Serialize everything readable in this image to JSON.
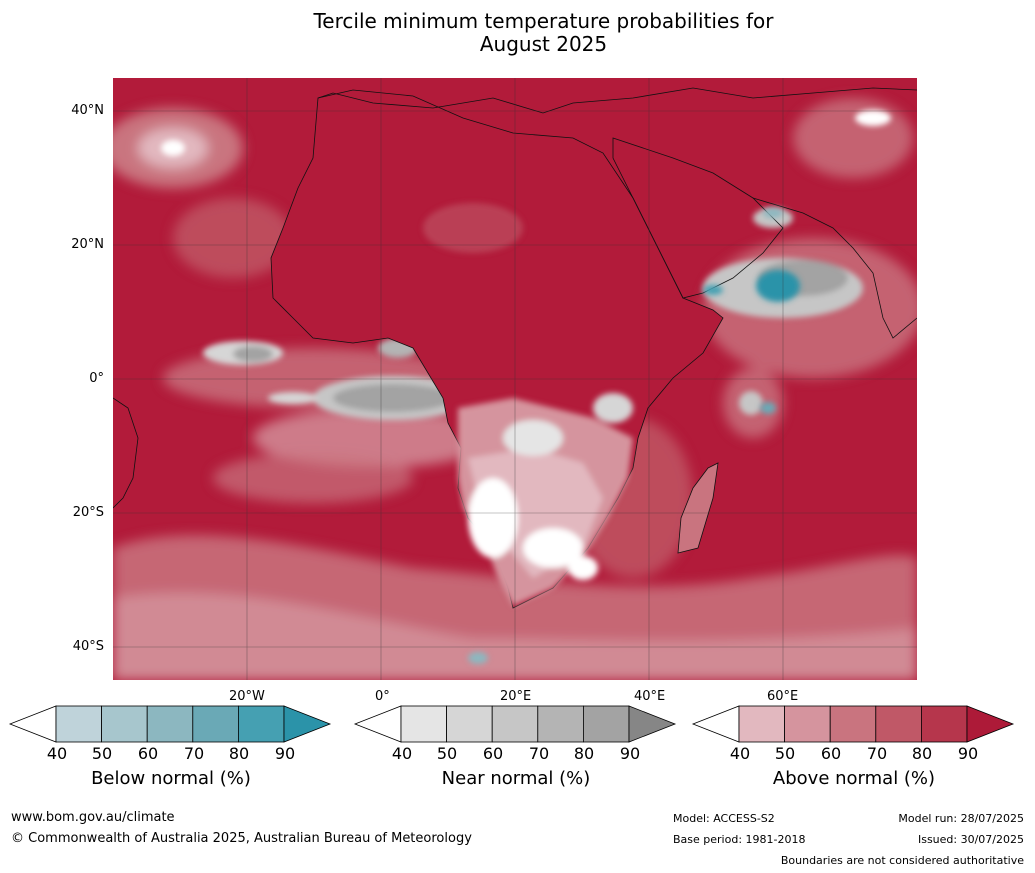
{
  "title_line1": "Tercile minimum temperature probabilities for",
  "title_line2": "August 2025",
  "lat_labels": [
    "40°N",
    "20°N",
    "0°",
    "20°S",
    "40°S"
  ],
  "lon_labels": [
    "20°W",
    "0°",
    "20°E",
    "40°E",
    "60°E"
  ],
  "colorbars": [
    {
      "label": "Below normal (%)",
      "ticks": [
        "40",
        "50",
        "60",
        "70",
        "80",
        "90"
      ],
      "colors": [
        "#ffffff",
        "#bfd3da",
        "#a7c6cd",
        "#8cb7c0",
        "#6aa9b6",
        "#45a0b2",
        "#2b93a9"
      ]
    },
    {
      "label": "Near normal (%)",
      "ticks": [
        "40",
        "50",
        "60",
        "70",
        "80",
        "90"
      ],
      "colors": [
        "#ffffff",
        "#e5e5e5",
        "#d6d6d6",
        "#c6c6c6",
        "#b4b4b4",
        "#a3a3a3",
        "#868686"
      ]
    },
    {
      "label": "Above normal (%)",
      "ticks": [
        "40",
        "50",
        "60",
        "70",
        "80",
        "90"
      ],
      "colors": [
        "#ffffff",
        "#e2b8bf",
        "#d5949e",
        "#c9747f",
        "#c05867",
        "#b6364c",
        "#ad1a38"
      ]
    }
  ],
  "footer": {
    "website": "www.bom.gov.au/climate",
    "copyright": "© Commonwealth of Australia 2025, Australian Bureau of Meteorology",
    "model": "Model: ACCESS-S2",
    "base_period": "Base period: 1981-2018",
    "model_run": "Model run: 28/07/2025",
    "issued": "Issued: 30/07/2025",
    "disclaimer": "Boundaries are not considered authoritative"
  }
}
